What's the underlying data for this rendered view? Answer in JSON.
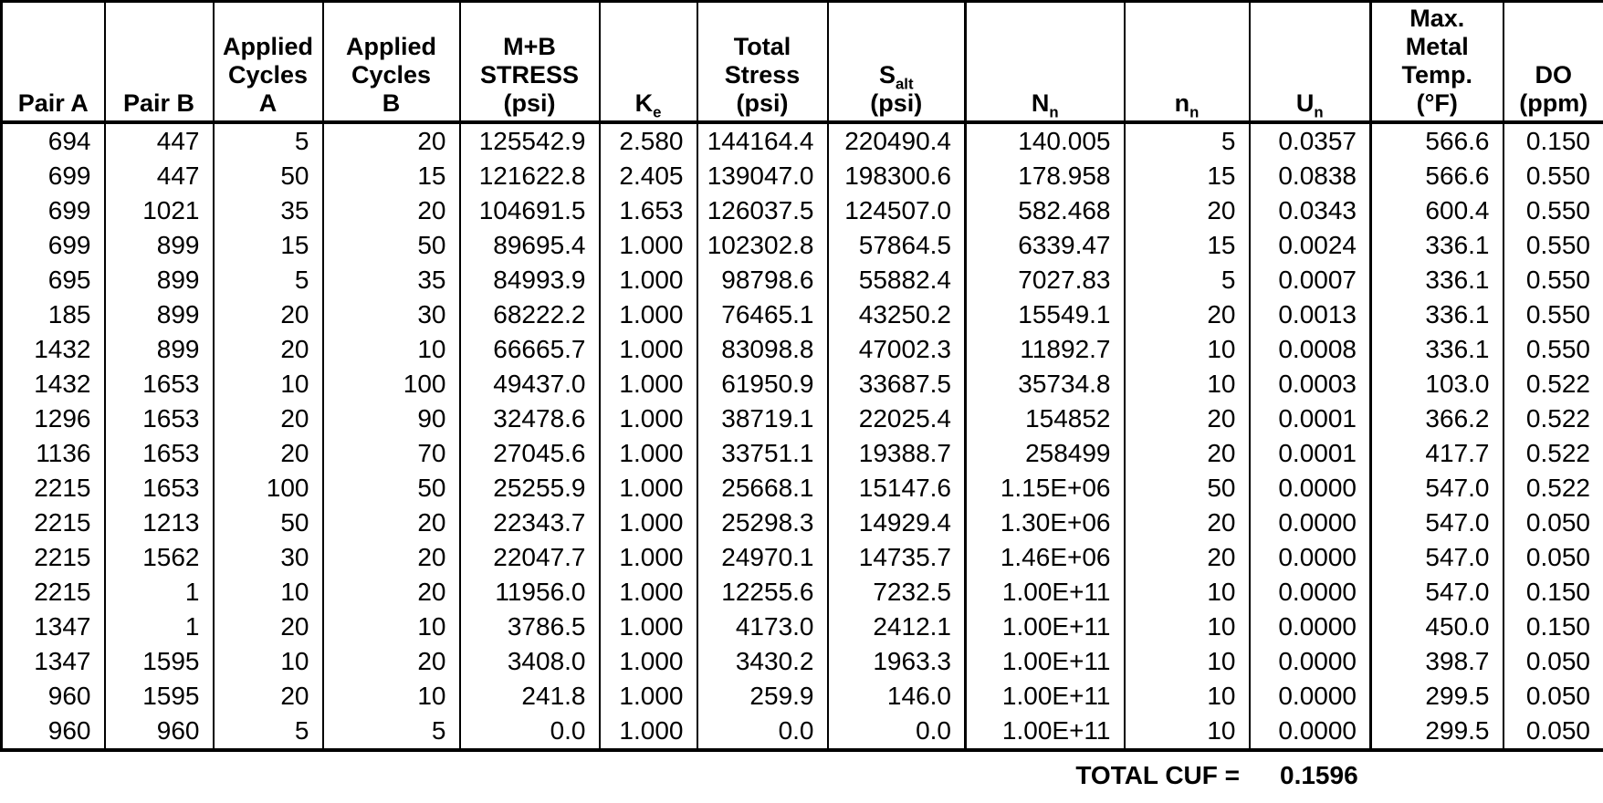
{
  "table": {
    "columns": [
      {
        "id": "pair-a",
        "lines": [
          "Pair A"
        ]
      },
      {
        "id": "pair-b",
        "lines": [
          "Pair B"
        ]
      },
      {
        "id": "applied-cycles-a",
        "lines": [
          "Applied",
          "Cycles",
          "A"
        ]
      },
      {
        "id": "applied-cycles-b",
        "lines": [
          "Applied",
          "Cycles",
          "B"
        ]
      },
      {
        "id": "mb-stress-psi",
        "lines": [
          "M+B",
          "STRESS",
          "(psi)"
        ]
      },
      {
        "id": "ke",
        "lines": [
          {
            "t": "K",
            "sub": "e"
          }
        ]
      },
      {
        "id": "total-stress-psi",
        "lines": [
          "Total",
          "Stress",
          "(psi)"
        ]
      },
      {
        "id": "s-alt-psi",
        "lines": [
          {
            "t": "S",
            "sub": "alt"
          },
          "(psi)"
        ]
      },
      {
        "id": "nn-allowable",
        "lines": [
          {
            "t": "N",
            "sub": "n"
          }
        ]
      },
      {
        "id": "nn-applied",
        "lines": [
          {
            "t": "n",
            "sub": "n"
          }
        ]
      },
      {
        "id": "un-usage",
        "lines": [
          {
            "t": "U",
            "sub": "n"
          }
        ]
      },
      {
        "id": "max-metal-temp-f",
        "lines": [
          "Max.",
          "Metal",
          "Temp.",
          "(°F)"
        ]
      },
      {
        "id": "do-ppm",
        "lines": [
          "DO",
          "(ppm)"
        ]
      }
    ],
    "rows": [
      [
        "694",
        "447",
        "5",
        "20",
        "125542.9",
        "2.580",
        "144164.4",
        "220490.4",
        "140.005",
        "5",
        "0.0357",
        "566.6",
        "0.150"
      ],
      [
        "699",
        "447",
        "50",
        "15",
        "121622.8",
        "2.405",
        "139047.0",
        "198300.6",
        "178.958",
        "15",
        "0.0838",
        "566.6",
        "0.550"
      ],
      [
        "699",
        "1021",
        "35",
        "20",
        "104691.5",
        "1.653",
        "126037.5",
        "124507.0",
        "582.468",
        "20",
        "0.0343",
        "600.4",
        "0.550"
      ],
      [
        "699",
        "899",
        "15",
        "50",
        "89695.4",
        "1.000",
        "102302.8",
        "57864.5",
        "6339.47",
        "15",
        "0.0024",
        "336.1",
        "0.550"
      ],
      [
        "695",
        "899",
        "5",
        "35",
        "84993.9",
        "1.000",
        "98798.6",
        "55882.4",
        "7027.83",
        "5",
        "0.0007",
        "336.1",
        "0.550"
      ],
      [
        "185",
        "899",
        "20",
        "30",
        "68222.2",
        "1.000",
        "76465.1",
        "43250.2",
        "15549.1",
        "20",
        "0.0013",
        "336.1",
        "0.550"
      ],
      [
        "1432",
        "899",
        "20",
        "10",
        "66665.7",
        "1.000",
        "83098.8",
        "47002.3",
        "11892.7",
        "10",
        "0.0008",
        "336.1",
        "0.550"
      ],
      [
        "1432",
        "1653",
        "10",
        "100",
        "49437.0",
        "1.000",
        "61950.9",
        "33687.5",
        "35734.8",
        "10",
        "0.0003",
        "103.0",
        "0.522"
      ],
      [
        "1296",
        "1653",
        "20",
        "90",
        "32478.6",
        "1.000",
        "38719.1",
        "22025.4",
        "154852",
        "20",
        "0.0001",
        "366.2",
        "0.522"
      ],
      [
        "1136",
        "1653",
        "20",
        "70",
        "27045.6",
        "1.000",
        "33751.1",
        "19388.7",
        "258499",
        "20",
        "0.0001",
        "417.7",
        "0.522"
      ],
      [
        "2215",
        "1653",
        "100",
        "50",
        "25255.9",
        "1.000",
        "25668.1",
        "15147.6",
        "1.15E+06",
        "50",
        "0.0000",
        "547.0",
        "0.522"
      ],
      [
        "2215",
        "1213",
        "50",
        "20",
        "22343.7",
        "1.000",
        "25298.3",
        "14929.4",
        "1.30E+06",
        "20",
        "0.0000",
        "547.0",
        "0.050"
      ],
      [
        "2215",
        "1562",
        "30",
        "20",
        "22047.7",
        "1.000",
        "24970.1",
        "14735.7",
        "1.46E+06",
        "20",
        "0.0000",
        "547.0",
        "0.050"
      ],
      [
        "2215",
        "1",
        "10",
        "20",
        "11956.0",
        "1.000",
        "12255.6",
        "7232.5",
        "1.00E+11",
        "10",
        "0.0000",
        "547.0",
        "0.150"
      ],
      [
        "1347",
        "1",
        "20",
        "10",
        "3786.5",
        "1.000",
        "4173.0",
        "2412.1",
        "1.00E+11",
        "10",
        "0.0000",
        "450.0",
        "0.150"
      ],
      [
        "1347",
        "1595",
        "10",
        "20",
        "3408.0",
        "1.000",
        "3430.2",
        "1963.3",
        "1.00E+11",
        "10",
        "0.0000",
        "398.7",
        "0.050"
      ],
      [
        "960",
        "1595",
        "20",
        "10",
        "241.8",
        "1.000",
        "259.9",
        "146.0",
        "1.00E+11",
        "10",
        "0.0000",
        "299.5",
        "0.050"
      ],
      [
        "960",
        "960",
        "5",
        "5",
        "0.0",
        "1.000",
        "0.0",
        "0.0",
        "1.00E+11",
        "10",
        "0.0000",
        "299.5",
        "0.050"
      ]
    ],
    "footer": {
      "label": "TOTAL CUF =",
      "value": "0.1596"
    }
  }
}
